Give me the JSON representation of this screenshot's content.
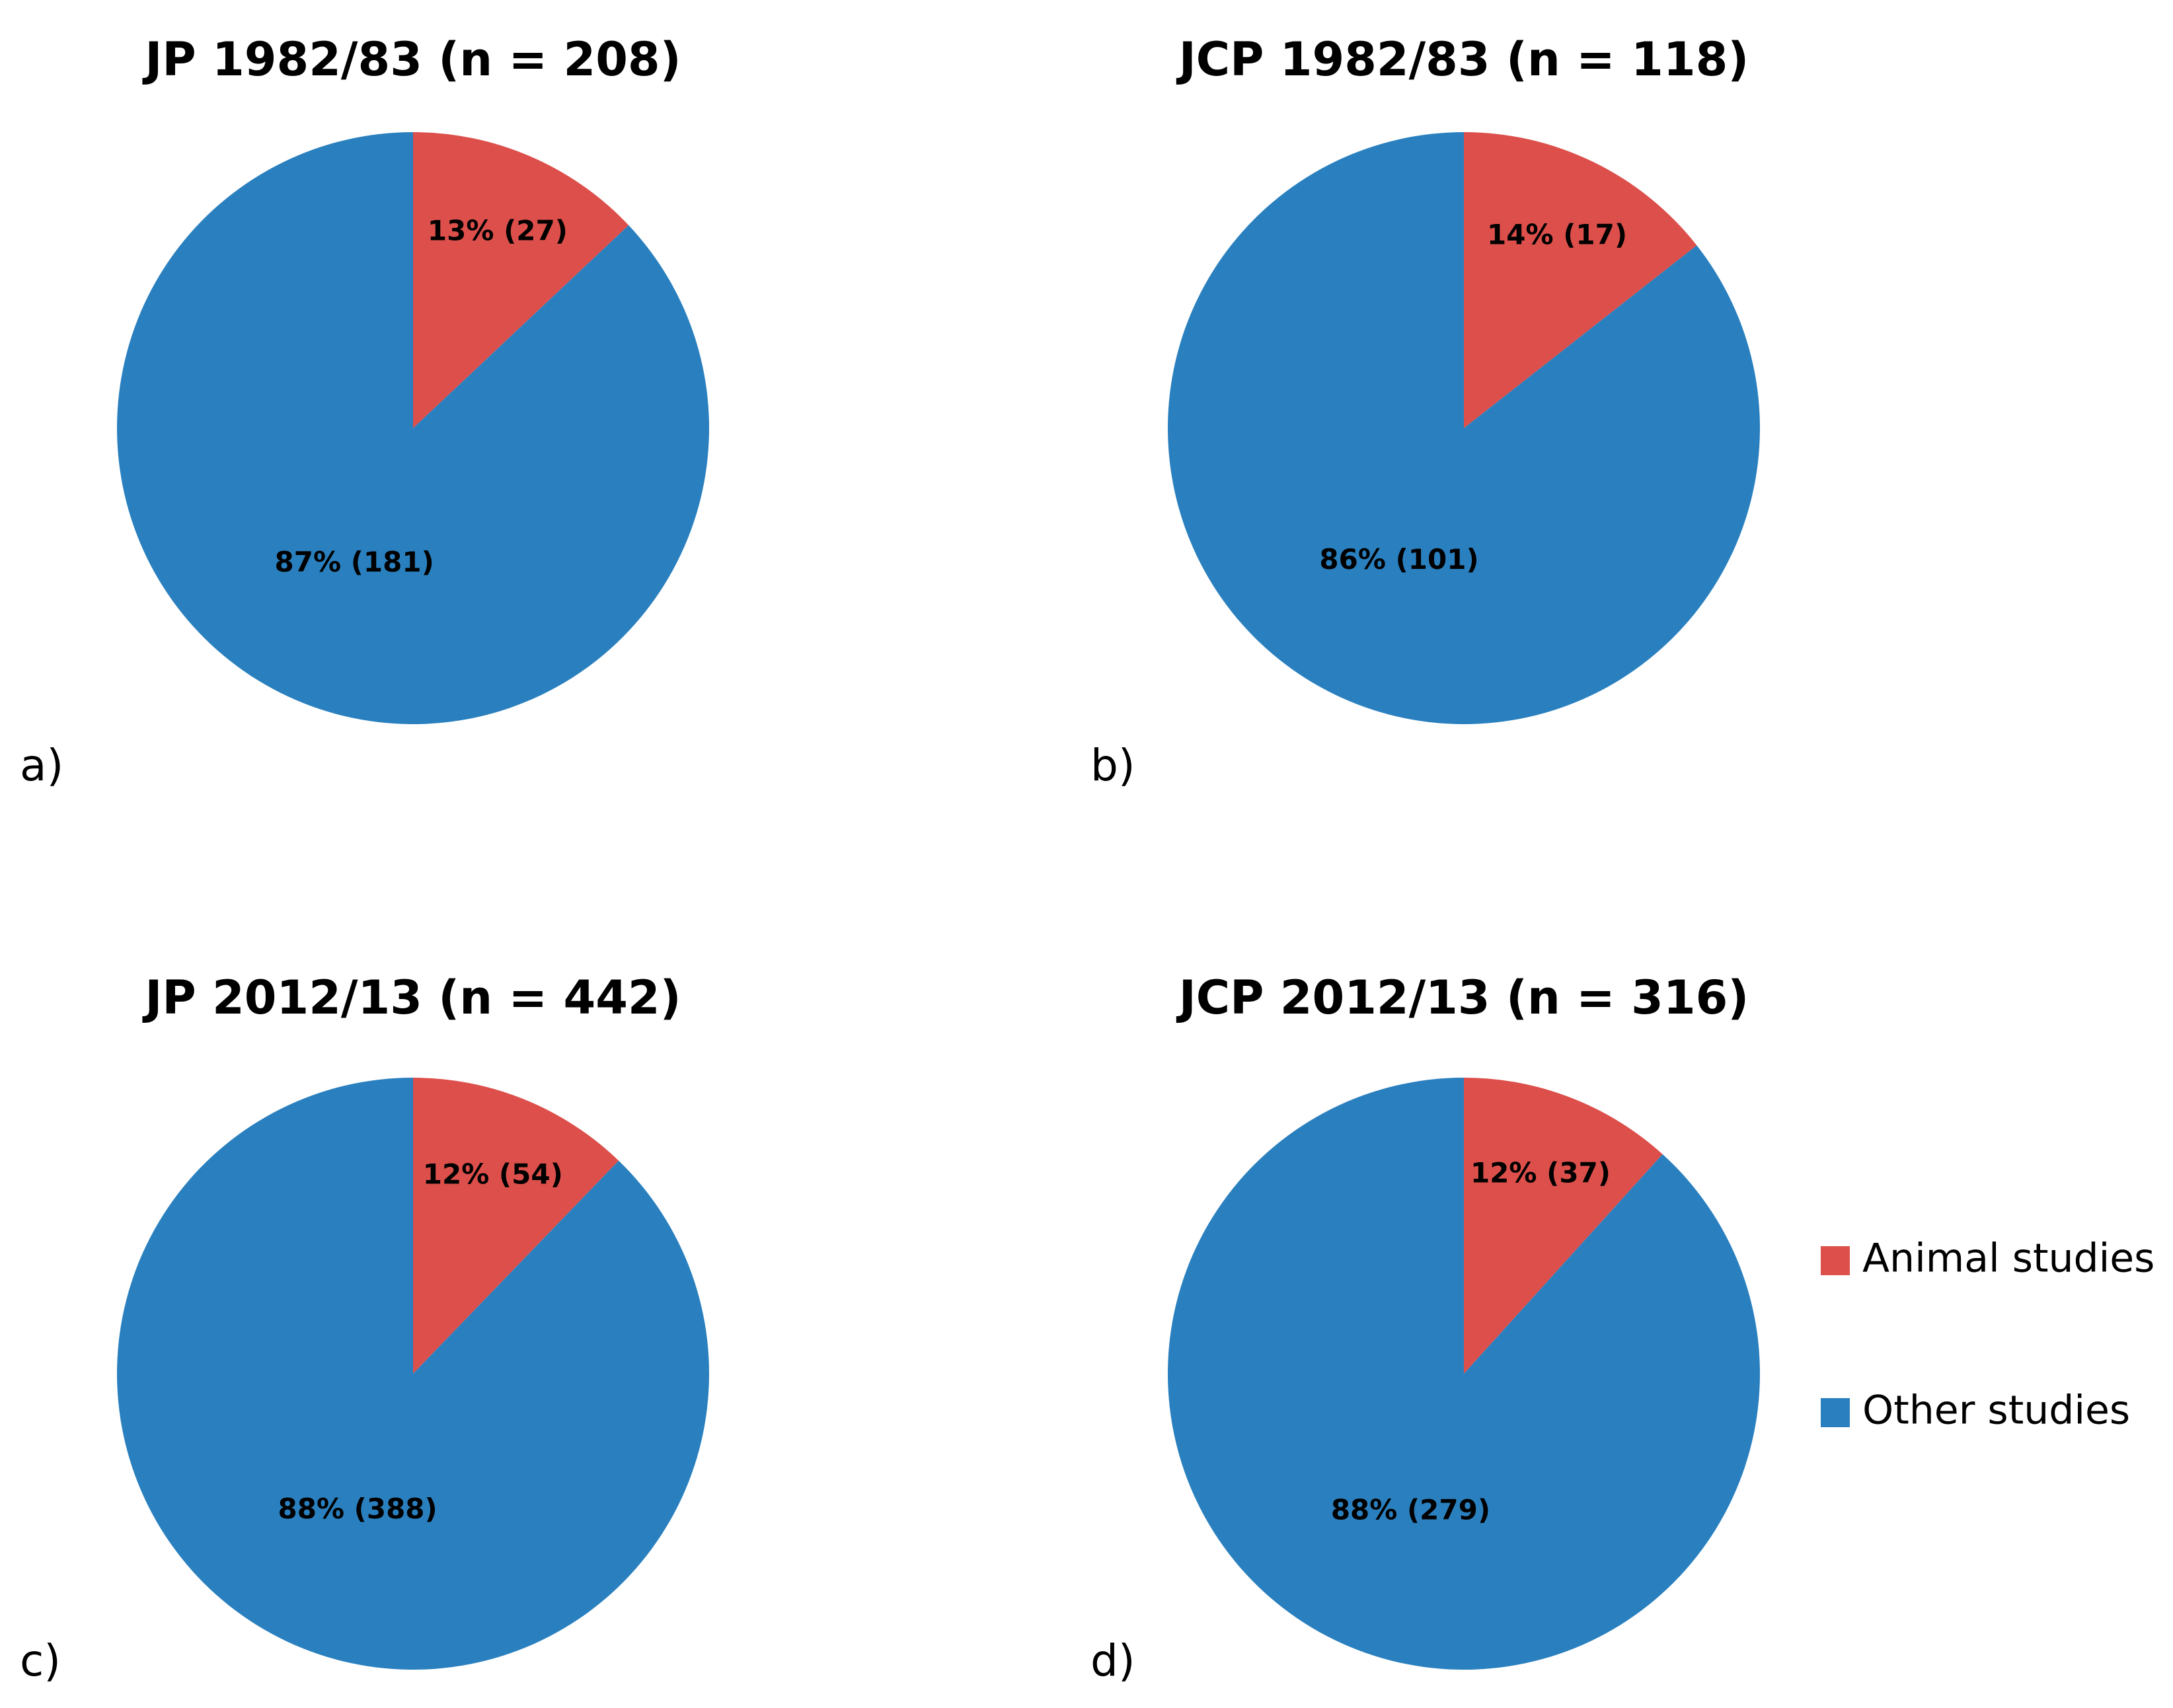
{
  "chart_data": [
    {
      "type": "pie",
      "title": "JP 1982/83 (n = 208)",
      "panel_label": "a)",
      "categories": [
        "Animal studies",
        "Other studies"
      ],
      "values": [
        27,
        181
      ],
      "value_labels": [
        "13% (27)",
        "87% (181)"
      ],
      "colors": [
        "#dc4f4b",
        "#2a80bf"
      ]
    },
    {
      "type": "pie",
      "title": "JCP 1982/83 (n = 118)",
      "panel_label": "b)",
      "categories": [
        "Animal studies",
        "Other studies"
      ],
      "values": [
        17,
        101
      ],
      "value_labels": [
        "14% (17)",
        "86% (101)"
      ],
      "colors": [
        "#dc4f4b",
        "#2a80bf"
      ]
    },
    {
      "type": "pie",
      "title": "JP 2012/13 (n = 442)",
      "panel_label": "c)",
      "categories": [
        "Animal studies",
        "Other studies"
      ],
      "values": [
        54,
        388
      ],
      "value_labels": [
        "12% (54)",
        "88% (388)"
      ],
      "colors": [
        "#dc4f4b",
        "#2a80bf"
      ]
    },
    {
      "type": "pie",
      "title": "JCP 2012/13 (n = 316)",
      "panel_label": "d)",
      "categories": [
        "Animal studies",
        "Other studies"
      ],
      "values": [
        37,
        279
      ],
      "value_labels": [
        "12% (37)",
        "88% (279)"
      ],
      "colors": [
        "#dc4f4b",
        "#2a80bf"
      ],
      "legend": "right"
    }
  ]
}
